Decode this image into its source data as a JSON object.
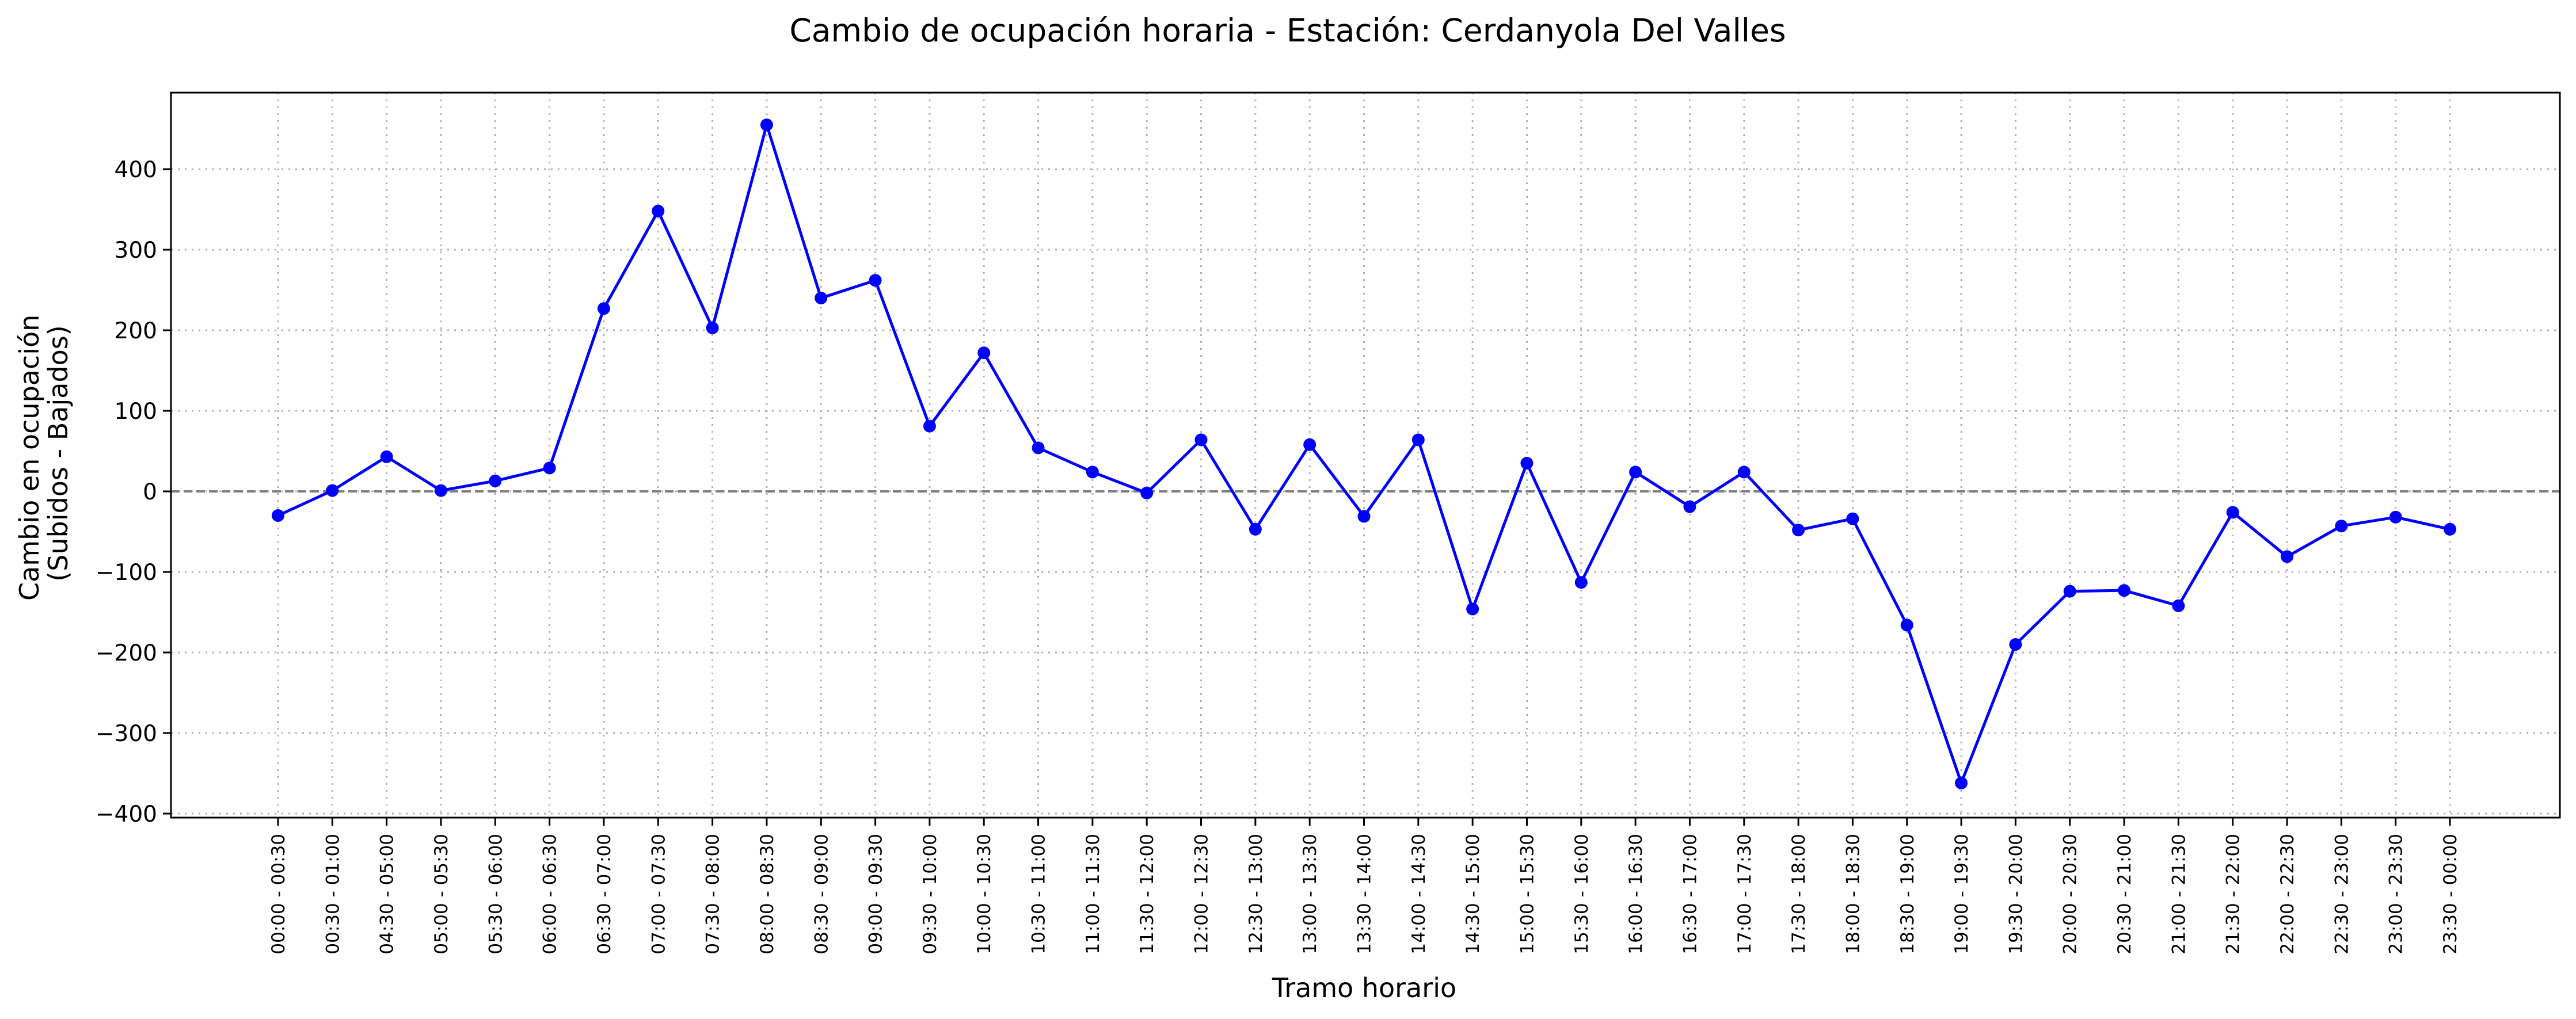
{
  "chart_data": {
    "type": "line",
    "title": "Cambio de ocupación horaria - Estación: Cerdanyola Del Valles",
    "xlabel": "Tramo horario",
    "ylabel_lines": [
      "Cambio en ocupación",
      "(Subidos - Bajados)"
    ],
    "ylim": [
      -405,
      495
    ],
    "yticks": [
      -400,
      -300,
      -200,
      -100,
      0,
      100,
      200,
      300,
      400
    ],
    "ytick_labels": [
      "−400",
      "−300",
      "−200",
      "−100",
      "0",
      "100",
      "200",
      "300",
      "400"
    ],
    "grid": true,
    "zero_line": true,
    "line_color": "#0000ff",
    "categories": [
      "00:00 - 00:30",
      "00:30 - 01:00",
      "04:30 - 05:00",
      "05:00 - 05:30",
      "05:30 - 06:00",
      "06:00 - 06:30",
      "06:30 - 07:00",
      "07:00 - 07:30",
      "07:30 - 08:00",
      "08:00 - 08:30",
      "08:30 - 09:00",
      "09:00 - 09:30",
      "09:30 - 10:00",
      "10:00 - 10:30",
      "10:30 - 11:00",
      "11:00 - 11:30",
      "11:30 - 12:00",
      "12:00 - 12:30",
      "12:30 - 13:00",
      "13:00 - 13:30",
      "13:30 - 14:00",
      "14:00 - 14:30",
      "14:30 - 15:00",
      "15:00 - 15:30",
      "15:30 - 16:00",
      "16:00 - 16:30",
      "16:30 - 17:00",
      "17:00 - 17:30",
      "17:30 - 18:00",
      "18:00 - 18:30",
      "18:30 - 19:00",
      "19:00 - 19:30",
      "19:30 - 20:00",
      "20:00 - 20:30",
      "20:30 - 21:00",
      "21:00 - 21:30",
      "21:30 - 22:00",
      "22:00 - 22:30",
      "22:30 - 23:00",
      "23:00 - 23:30",
      "23:30 - 00:00"
    ],
    "values": [
      -30,
      1,
      43,
      1,
      13,
      29,
      227,
      348,
      203,
      455,
      240,
      262,
      81,
      172,
      54,
      24,
      -2,
      64,
      -47,
      58,
      -31,
      64,
      -146,
      35,
      -113,
      24,
      -19,
      24,
      -48,
      -34,
      -166,
      -362,
      -190,
      -124,
      -123,
      -142,
      -26,
      -81,
      -43,
      -32,
      -47
    ]
  }
}
